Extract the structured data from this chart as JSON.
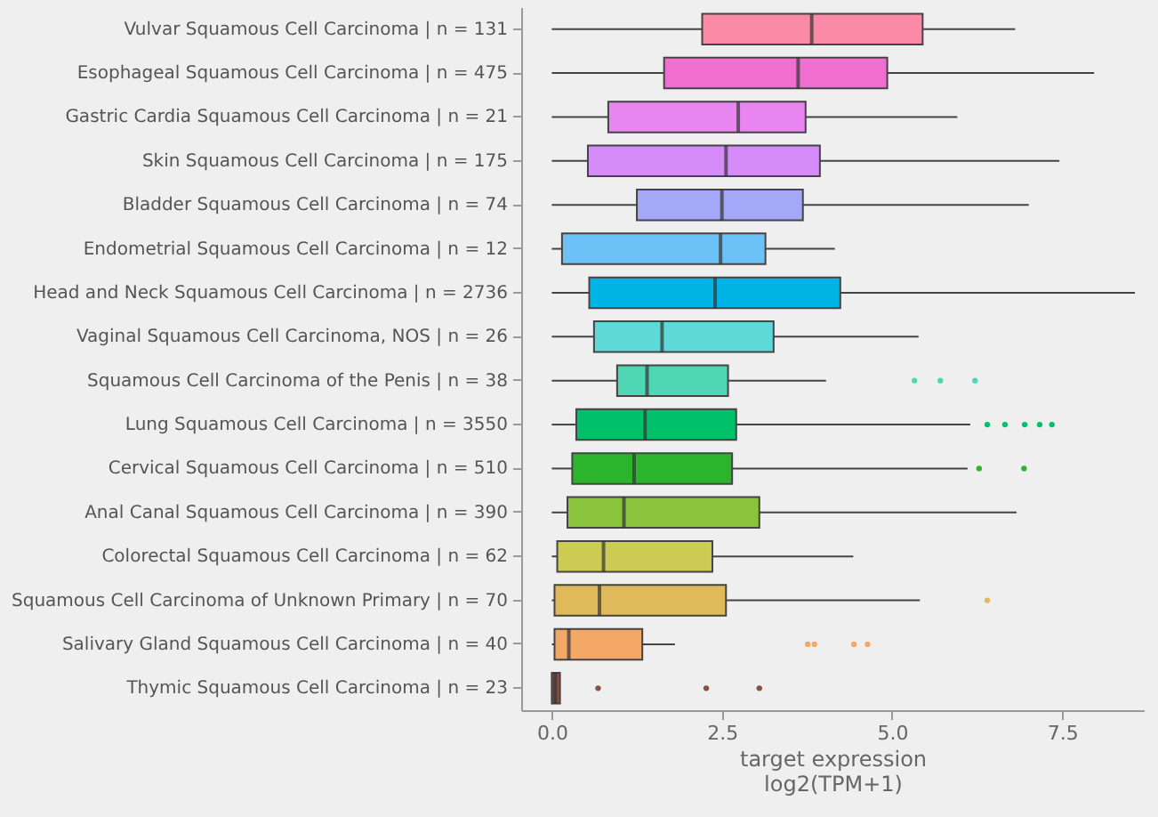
{
  "chart_data": {
    "type": "box",
    "orientation": "horizontal",
    "xlabel": "target expression\nlog2(TPM+1)",
    "categories": [
      "Vulvar Squamous Cell Carcinoma | n = 131",
      "Esophageal Squamous Cell Carcinoma | n = 475",
      "Gastric Cardia Squamous Cell Carcinoma | n = 21",
      "Skin Squamous Cell Carcinoma | n = 175",
      "Bladder Squamous Cell Carcinoma | n = 74",
      "Endometrial Squamous Cell Carcinoma | n = 12",
      "Head and Neck Squamous Cell Carcinoma | n = 2736",
      "Vaginal Squamous Cell Carcinoma, NOS | n = 26",
      "Squamous Cell Carcinoma of the Penis | n = 38",
      "Lung Squamous Cell Carcinoma | n = 3550",
      "Cervical Squamous Cell Carcinoma | n = 510",
      "Anal Canal Squamous Cell Carcinoma | n = 390",
      "Colorectal Squamous Cell Carcinoma | n = 62",
      "Squamous Cell Carcinoma of Unknown Primary | n = 70",
      "Salivary Gland Squamous Cell Carcinoma | n = 40",
      "Thymic Squamous Cell Carcinoma | n = 23"
    ],
    "boxes": [
      {
        "low": 0,
        "q1": 2.21,
        "median": 3.82,
        "q3": 5.45,
        "high": 6.81
      },
      {
        "low": 0,
        "q1": 1.65,
        "median": 3.62,
        "q3": 4.93,
        "high": 7.97
      },
      {
        "low": 0,
        "q1": 0.83,
        "median": 2.74,
        "q3": 3.73,
        "high": 5.96
      },
      {
        "low": 0,
        "q1": 0.53,
        "median": 2.56,
        "q3": 3.94,
        "high": 7.46
      },
      {
        "low": 0,
        "q1": 1.25,
        "median": 2.5,
        "q3": 3.69,
        "high": 7.01
      },
      {
        "low": 0,
        "q1": 0.15,
        "median": 2.48,
        "q3": 3.14,
        "high": 4.16
      },
      {
        "low": 0,
        "q1": 0.55,
        "median": 2.4,
        "q3": 4.24,
        "high": 8.57
      },
      {
        "low": 0,
        "q1": 0.62,
        "median": 1.62,
        "q3": 3.26,
        "high": 5.39
      },
      {
        "low": 0,
        "q1": 0.96,
        "median": 1.4,
        "q3": 2.59,
        "high": 4.03,
        "outliers": [
          5.33,
          5.71,
          6.22
        ]
      },
      {
        "low": 0,
        "q1": 0.36,
        "median": 1.37,
        "q3": 2.71,
        "high": 6.15,
        "outliers": [
          6.4,
          6.66,
          6.95,
          7.17,
          7.35
        ]
      },
      {
        "low": 0,
        "q1": 0.3,
        "median": 1.21,
        "q3": 2.65,
        "high": 6.11,
        "outliers": [
          6.28,
          6.94
        ]
      },
      {
        "low": 0,
        "q1": 0.23,
        "median": 1.06,
        "q3": 3.05,
        "high": 6.83
      },
      {
        "low": 0,
        "q1": 0.08,
        "median": 0.76,
        "q3": 2.36,
        "high": 4.43
      },
      {
        "low": 0,
        "q1": 0.04,
        "median": 0.7,
        "q3": 2.56,
        "high": 5.41,
        "outliers": [
          6.4
        ]
      },
      {
        "low": 0,
        "q1": 0.04,
        "median": 0.25,
        "q3": 1.33,
        "high": 1.81,
        "outliers": [
          3.76,
          3.86,
          4.44,
          4.64
        ]
      },
      {
        "low": 0,
        "q1": 0,
        "median": 0.05,
        "q3": 0.12,
        "high": 0.12,
        "outliers": [
          0.68,
          2.27,
          3.05
        ]
      }
    ],
    "colors": [
      "#fb8aa6",
      "#f06ecf",
      "#e985f0",
      "#d58cf8",
      "#a3a8f8",
      "#6cc2f6",
      "#00b4e6",
      "#5fd8d8",
      "#4fd6b4",
      "#00c06a",
      "#2cb52c",
      "#8ac43c",
      "#cccc55",
      "#e0b95a",
      "#f4a868",
      "#8b5044"
    ],
    "xlim": [
      -0.45,
      8.7
    ],
    "xticks": [
      {
        "value": 0,
        "label": "0.0"
      },
      2.5,
      {
        "value": 5,
        "label": "5.0"
      },
      7.5
    ]
  }
}
